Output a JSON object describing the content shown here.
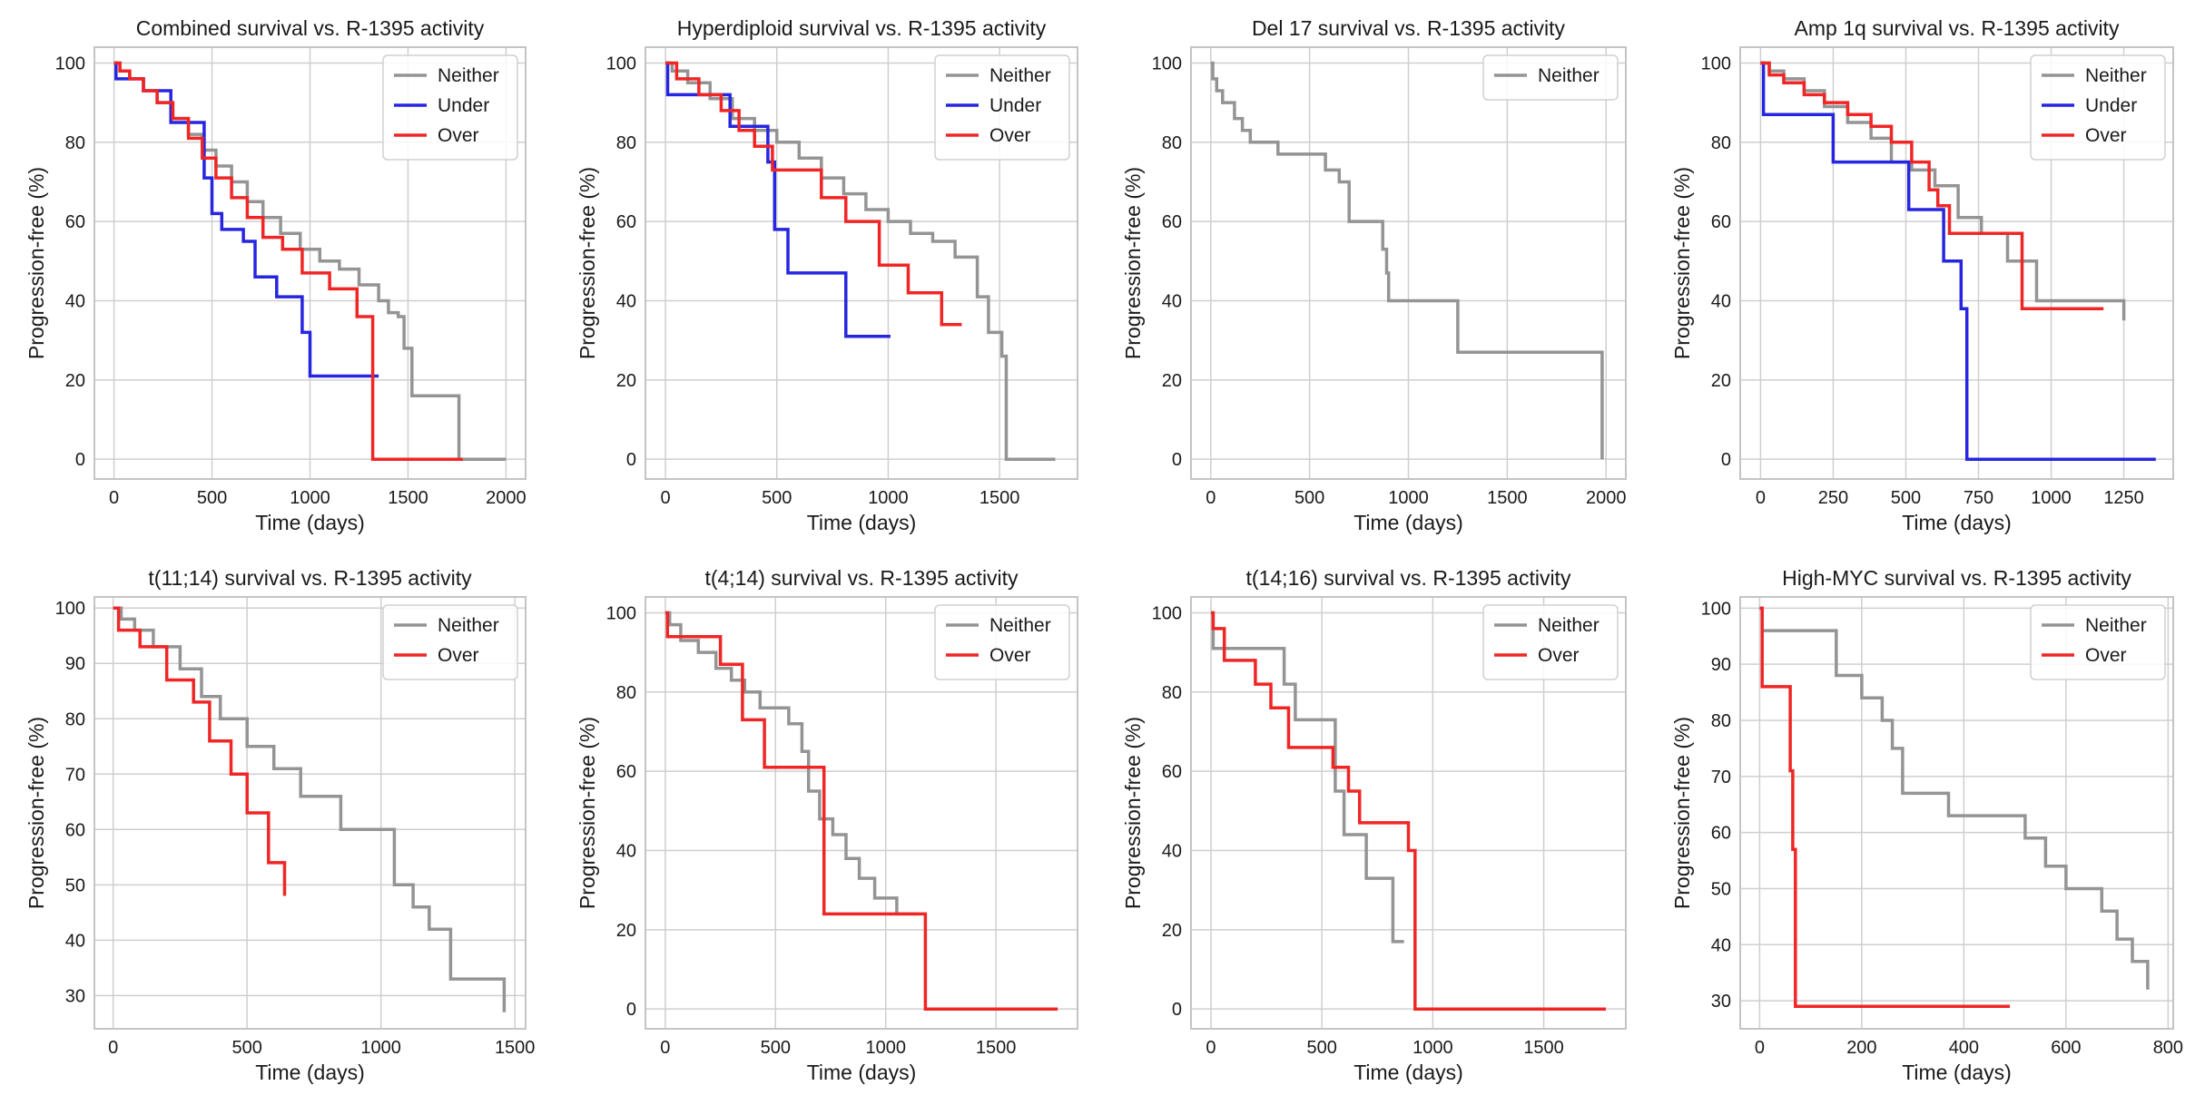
{
  "colors": {
    "Neither": "#949494",
    "Under": "#2626e0",
    "Over": "#f02626",
    "grid": "#cfcfcf",
    "frame": "#c4c4c4"
  },
  "chart_data": [
    {
      "type": "line",
      "title": "Combined survival vs. R-1395 activity",
      "xlabel": "Time (days)",
      "ylabel": "Progression-free (%)",
      "xlim": [
        -100,
        2100
      ],
      "ylim": [
        -5,
        104
      ],
      "xticks": [
        0,
        500,
        1000,
        1500,
        2000
      ],
      "yticks": [
        0,
        20,
        40,
        60,
        80,
        100
      ],
      "grid": true,
      "legend_position": "top-right",
      "series": [
        {
          "name": "Neither",
          "color": "#949494",
          "x": [
            0,
            30,
            80,
            150,
            220,
            300,
            380,
            450,
            520,
            600,
            680,
            760,
            850,
            950,
            1050,
            1150,
            1250,
            1350,
            1400,
            1450,
            1480,
            1520,
            1760,
            2000
          ],
          "y": [
            100,
            98,
            96,
            93,
            90,
            86,
            82,
            78,
            74,
            70,
            65,
            61,
            57,
            53,
            50,
            48,
            44,
            40,
            37,
            36,
            28,
            16,
            0,
            0
          ]
        },
        {
          "name": "Under",
          "color": "#2626e0",
          "x": [
            0,
            10,
            150,
            290,
            460,
            500,
            550,
            660,
            720,
            830,
            960,
            1000,
            1350
          ],
          "y": [
            100,
            96,
            93,
            85,
            71,
            62,
            58,
            55,
            46,
            41,
            32,
            21,
            21
          ]
        },
        {
          "name": "Over",
          "color": "#f02626",
          "x": [
            0,
            30,
            80,
            150,
            220,
            300,
            380,
            450,
            520,
            600,
            680,
            760,
            860,
            960,
            1100,
            1240,
            1320,
            1780
          ],
          "y": [
            100,
            98,
            96,
            93,
            90,
            86,
            81,
            76,
            71,
            66,
            61,
            56,
            53,
            47,
            43,
            36,
            0,
            0
          ]
        }
      ]
    },
    {
      "type": "line",
      "title": "Hyperdiploid survival vs. R-1395 activity",
      "xlabel": "Time (days)",
      "ylabel": "Progression-free (%)",
      "xlim": [
        -90,
        1850
      ],
      "ylim": [
        -5,
        104
      ],
      "xticks": [
        0,
        500,
        1000,
        1500
      ],
      "yticks": [
        0,
        20,
        40,
        60,
        80,
        100
      ],
      "grid": true,
      "legend_position": "top-right",
      "series": [
        {
          "name": "Neither",
          "color": "#949494",
          "x": [
            0,
            30,
            100,
            200,
            300,
            400,
            500,
            600,
            700,
            800,
            900,
            1000,
            1100,
            1200,
            1300,
            1400,
            1450,
            1510,
            1530,
            1750
          ],
          "y": [
            100,
            98,
            95,
            91,
            86,
            83,
            80,
            76,
            71,
            67,
            63,
            60,
            57,
            55,
            51,
            41,
            32,
            26,
            0,
            0
          ]
        },
        {
          "name": "Under",
          "color": "#2626e0",
          "x": [
            0,
            10,
            290,
            460,
            490,
            550,
            810,
            1010
          ],
          "y": [
            100,
            92,
            84,
            75,
            58,
            47,
            31,
            31
          ]
        },
        {
          "name": "Over",
          "color": "#f02626",
          "x": [
            0,
            50,
            150,
            250,
            330,
            400,
            480,
            560,
            700,
            810,
            960,
            1090,
            1240,
            1330
          ],
          "y": [
            100,
            96,
            92,
            88,
            83,
            79,
            73,
            73,
            66,
            60,
            49,
            42,
            34,
            34
          ]
        }
      ]
    },
    {
      "type": "line",
      "title": "Del 17 survival vs. R-1395 activity",
      "xlabel": "Time (days)",
      "ylabel": "Progression-free (%)",
      "xlim": [
        -100,
        2100
      ],
      "ylim": [
        -5,
        104
      ],
      "xticks": [
        0,
        500,
        1000,
        1500,
        2000
      ],
      "yticks": [
        0,
        20,
        40,
        60,
        80,
        100
      ],
      "grid": true,
      "legend_position": "top-right",
      "series": [
        {
          "name": "Neither",
          "color": "#949494",
          "x": [
            0,
            10,
            30,
            60,
            120,
            160,
            200,
            340,
            580,
            650,
            700,
            870,
            890,
            900,
            1250,
            1980
          ],
          "y": [
            100,
            96,
            93,
            90,
            86,
            83,
            80,
            77,
            73,
            70,
            60,
            53,
            47,
            40,
            27,
            0
          ]
        }
      ]
    },
    {
      "type": "line",
      "title": "Amp 1q survival vs. R-1395 activity",
      "xlabel": "Time (days)",
      "ylabel": "Progression-free (%)",
      "xlim": [
        -70,
        1420
      ],
      "ylim": [
        -5,
        104
      ],
      "xticks": [
        0,
        250,
        500,
        750,
        1000,
        1250
      ],
      "yticks": [
        0,
        20,
        40,
        60,
        80,
        100
      ],
      "grid": true,
      "legend_position": "top-right",
      "series": [
        {
          "name": "Neither",
          "color": "#949494",
          "x": [
            0,
            30,
            80,
            150,
            220,
            300,
            380,
            450,
            520,
            600,
            680,
            760,
            850,
            950,
            1250
          ],
          "y": [
            100,
            98,
            96,
            93,
            89,
            85,
            81,
            75,
            73,
            69,
            61,
            57,
            50,
            40,
            35
          ]
        },
        {
          "name": "Under",
          "color": "#2626e0",
          "x": [
            0,
            10,
            250,
            510,
            630,
            690,
            710,
            1360
          ],
          "y": [
            100,
            87,
            75,
            63,
            50,
            38,
            0,
            0
          ]
        },
        {
          "name": "Over",
          "color": "#f02626",
          "x": [
            0,
            30,
            80,
            150,
            220,
            300,
            380,
            450,
            520,
            580,
            610,
            650,
            900,
            1180
          ],
          "y": [
            100,
            97,
            95,
            92,
            90,
            87,
            84,
            80,
            75,
            68,
            64,
            57,
            38,
            38
          ]
        }
      ]
    },
    {
      "type": "line",
      "title": "t(11;14) survival vs. R-1395 activity",
      "xlabel": "Time (days)",
      "ylabel": "Progression-free (%)",
      "xlim": [
        -70,
        1540
      ],
      "ylim": [
        24,
        102
      ],
      "xticks": [
        0,
        500,
        1000,
        1500
      ],
      "yticks": [
        30,
        40,
        50,
        60,
        70,
        80,
        90,
        100
      ],
      "grid": true,
      "legend_position": "top-right",
      "series": [
        {
          "name": "Neither",
          "color": "#949494",
          "x": [
            0,
            30,
            80,
            150,
            250,
            330,
            400,
            500,
            600,
            700,
            850,
            1050,
            1120,
            1180,
            1260,
            1460
          ],
          "y": [
            100,
            98,
            96,
            93,
            89,
            84,
            80,
            75,
            71,
            66,
            60,
            50,
            46,
            42,
            33,
            27
          ]
        },
        {
          "name": "Over",
          "color": "#f02626",
          "x": [
            0,
            20,
            100,
            200,
            300,
            360,
            440,
            500,
            580,
            640
          ],
          "y": [
            100,
            96,
            93,
            87,
            83,
            76,
            70,
            63,
            54,
            48
          ]
        }
      ]
    },
    {
      "type": "line",
      "title": "t(4;14) survival vs. R-1395 activity",
      "xlabel": "Time (days)",
      "ylabel": "Progression-free (%)",
      "xlim": [
        -90,
        1870
      ],
      "ylim": [
        -5,
        104
      ],
      "xticks": [
        0,
        500,
        1000,
        1500
      ],
      "yticks": [
        0,
        20,
        40,
        60,
        80,
        100
      ],
      "grid": true,
      "legend_position": "top-right",
      "series": [
        {
          "name": "Neither",
          "color": "#949494",
          "x": [
            0,
            20,
            70,
            150,
            230,
            300,
            360,
            430,
            560,
            620,
            650,
            700,
            760,
            820,
            880,
            950,
            1050,
            1150
          ],
          "y": [
            100,
            97,
            93,
            90,
            86,
            83,
            80,
            76,
            72,
            65,
            55,
            48,
            44,
            38,
            33,
            28,
            24,
            24
          ]
        },
        {
          "name": "Over",
          "color": "#f02626",
          "x": [
            0,
            10,
            250,
            350,
            450,
            700,
            720,
            1180,
            1780
          ],
          "y": [
            100,
            94,
            87,
            73,
            61,
            61,
            24,
            0,
            0
          ]
        }
      ]
    },
    {
      "type": "line",
      "title": "t(14;16) survival vs. R-1395 activity",
      "xlabel": "Time (days)",
      "ylabel": "Progression-free (%)",
      "xlim": [
        -90,
        1870
      ],
      "ylim": [
        -5,
        104
      ],
      "xticks": [
        0,
        500,
        1000,
        1500
      ],
      "yticks": [
        0,
        20,
        40,
        60,
        80,
        100
      ],
      "grid": true,
      "legend_position": "top-right",
      "series": [
        {
          "name": "Neither",
          "color": "#949494",
          "x": [
            0,
            10,
            330,
            380,
            450,
            560,
            600,
            700,
            820,
            870
          ],
          "y": [
            100,
            91,
            82,
            73,
            73,
            55,
            44,
            33,
            17,
            17
          ]
        },
        {
          "name": "Over",
          "color": "#f02626",
          "x": [
            0,
            10,
            60,
            200,
            270,
            350,
            550,
            620,
            670,
            890,
            920,
            1780
          ],
          "y": [
            100,
            96,
            88,
            82,
            76,
            66,
            61,
            55,
            47,
            40,
            0,
            0
          ]
        }
      ]
    },
    {
      "type": "line",
      "title": "High-MYC survival vs. R-1395 activity",
      "xlabel": "Time (days)",
      "ylabel": "Progression-free (%)",
      "xlim": [
        -38,
        810
      ],
      "ylim": [
        25,
        102
      ],
      "xticks": [
        0,
        200,
        400,
        600,
        800
      ],
      "yticks": [
        30,
        40,
        50,
        60,
        70,
        80,
        90,
        100
      ],
      "grid": true,
      "legend_position": "top-right",
      "series": [
        {
          "name": "Neither",
          "color": "#949494",
          "x": [
            0,
            5,
            130,
            150,
            200,
            240,
            260,
            280,
            370,
            520,
            560,
            600,
            670,
            700,
            730,
            760
          ],
          "y": [
            100,
            96,
            96,
            88,
            84,
            80,
            75,
            67,
            63,
            59,
            54,
            50,
            46,
            41,
            37,
            32
          ]
        },
        {
          "name": "Over",
          "color": "#f02626",
          "x": [
            0,
            5,
            60,
            65,
            70,
            490
          ],
          "y": [
            100,
            86,
            71,
            57,
            29,
            29
          ]
        }
      ]
    }
  ]
}
